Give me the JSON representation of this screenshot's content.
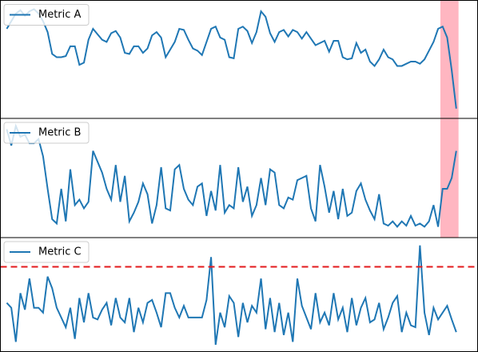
{
  "chart_data": [
    {
      "type": "line",
      "xlim": [
        -1.4,
        103.7
      ],
      "ylim": [
        -4,
        104
      ],
      "highlight": [
        95.5,
        99.5
      ],
      "highlight_color": "#ffb6c1",
      "series": [
        {
          "name": "Metric A",
          "color": "#1f77b4",
          "values": [
            78,
            85,
            92,
            95,
            90,
            94,
            96,
            92,
            85,
            75,
            55,
            52,
            52,
            53,
            62,
            62,
            45,
            47,
            68,
            78,
            73,
            68,
            66,
            74,
            76,
            70,
            56,
            55,
            62,
            62,
            56,
            60,
            72,
            75,
            70,
            52,
            59,
            66,
            78,
            77,
            68,
            60,
            58,
            54,
            66,
            78,
            80,
            70,
            68,
            52,
            51,
            78,
            80,
            76,
            65,
            75,
            94,
            89,
            74,
            66,
            75,
            77,
            71,
            77,
            75,
            69,
            75,
            69,
            63,
            65,
            67,
            57,
            67,
            67,
            52,
            50,
            51,
            65,
            56,
            59,
            48,
            44,
            50,
            59,
            52,
            50,
            44,
            44,
            46,
            48,
            48,
            46,
            50,
            58,
            66,
            78,
            80,
            70,
            40,
            5
          ]
        }
      ]
    },
    {
      "type": "line",
      "xlim": [
        -1.4,
        103.7
      ],
      "ylim": [
        -5,
        105
      ],
      "highlight": [
        95.5,
        99.5
      ],
      "highlight_color": "#ffb6c1",
      "series": [
        {
          "name": "Metric B",
          "color": "#1f77b4",
          "values": [
            95,
            80,
            98,
            88,
            90,
            82,
            82,
            86,
            70,
            40,
            12,
            8,
            40,
            10,
            58,
            25,
            30,
            22,
            28,
            75,
            65,
            55,
            40,
            30,
            62,
            28,
            52,
            10,
            18,
            28,
            45,
            35,
            8,
            25,
            60,
            22,
            20,
            58,
            62,
            40,
            30,
            25,
            42,
            45,
            15,
            38,
            20,
            62,
            18,
            25,
            22,
            60,
            28,
            42,
            15,
            25,
            50,
            25,
            58,
            55,
            25,
            22,
            32,
            30,
            48,
            50,
            52,
            22,
            10,
            62,
            42,
            18,
            38,
            12,
            40,
            15,
            18,
            38,
            45,
            30,
            20,
            12,
            35,
            8,
            6,
            10,
            5,
            10,
            6,
            15,
            6,
            8,
            5,
            10,
            25,
            5,
            40,
            40,
            50,
            75
          ]
        }
      ]
    },
    {
      "type": "line",
      "xlim": [
        -1.4,
        103.7
      ],
      "ylim": [
        -5,
        112
      ],
      "hline": 82,
      "hline_color": "#e31a1c",
      "series": [
        {
          "name": "Metric C",
          "color": "#1f77b4",
          "values": [
            45,
            40,
            5,
            55,
            38,
            70,
            40,
            40,
            35,
            72,
            60,
            40,
            30,
            20,
            40,
            8,
            50,
            25,
            55,
            30,
            28,
            38,
            45,
            22,
            50,
            30,
            25,
            50,
            15,
            40,
            25,
            45,
            48,
            35,
            20,
            55,
            55,
            40,
            30,
            42,
            30,
            30,
            30,
            30,
            48,
            92,
            2,
            35,
            20,
            52,
            45,
            10,
            45,
            25,
            42,
            35,
            70,
            18,
            50,
            15,
            45,
            12,
            35,
            5,
            70,
            42,
            30,
            18,
            55,
            25,
            35,
            22,
            55,
            28,
            40,
            15,
            50,
            22,
            40,
            50,
            25,
            28,
            45,
            18,
            30,
            45,
            52,
            15,
            35,
            22,
            20,
            104,
            35,
            12,
            40,
            28,
            35,
            42,
            28,
            15
          ]
        }
      ]
    }
  ]
}
